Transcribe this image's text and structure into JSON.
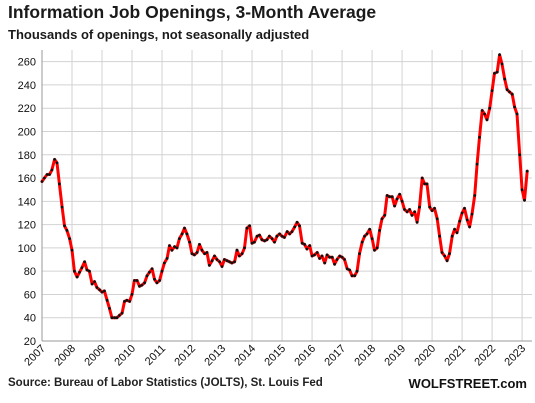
{
  "chart_data": {
    "type": "line",
    "title": "Information Job Openings, 3-Month Average",
    "subtitle": "Thousands of openings, not seasonally adjusted",
    "source": "Source: Bureau of Labor Statistics (JOLTS), St. Louis Fed",
    "brand": "WOLFSTREET.com",
    "ylim": [
      20,
      270
    ],
    "yticks": [
      20,
      40,
      60,
      80,
      100,
      120,
      140,
      160,
      180,
      200,
      220,
      240,
      260
    ],
    "xlim": [
      2007.0,
      2023.33
    ],
    "xticks": [
      "2007",
      "2008",
      "2009",
      "2010",
      "2011",
      "2012",
      "2013",
      "2014",
      "2015",
      "2016",
      "2017",
      "2018",
      "2019",
      "2020",
      "2021",
      "2022",
      "2023"
    ],
    "grid": true,
    "line_color": "#ff0000",
    "marker_color": "#111111",
    "series": [
      {
        "x": [
          2007.0,
          2007.08,
          2007.17,
          2007.25,
          2007.33,
          2007.42,
          2007.5,
          2007.58,
          2007.67,
          2007.75,
          2007.83,
          2007.92,
          2008.0,
          2008.08,
          2008.17,
          2008.25,
          2008.33,
          2008.42,
          2008.5,
          2008.58,
          2008.67,
          2008.75,
          2008.83,
          2008.92,
          2009.0,
          2009.08,
          2009.17,
          2009.25,
          2009.33,
          2009.42,
          2009.5,
          2009.58,
          2009.67,
          2009.75,
          2009.83,
          2009.92,
          2010.0,
          2010.08,
          2010.17,
          2010.25,
          2010.33,
          2010.42,
          2010.5,
          2010.58,
          2010.67,
          2010.75,
          2010.83,
          2010.92,
          2011.0,
          2011.08,
          2011.17,
          2011.25,
          2011.33,
          2011.42,
          2011.5,
          2011.58,
          2011.67,
          2011.75,
          2011.83,
          2011.92,
          2012.0,
          2012.08,
          2012.17,
          2012.25,
          2012.33,
          2012.42,
          2012.5,
          2012.58,
          2012.67,
          2012.75,
          2012.83,
          2012.92,
          2013.0,
          2013.08,
          2013.17,
          2013.25,
          2013.33,
          2013.42,
          2013.5,
          2013.58,
          2013.67,
          2013.75,
          2013.83,
          2013.92,
          2014.0,
          2014.08,
          2014.17,
          2014.25,
          2014.33,
          2014.42,
          2014.5,
          2014.58,
          2014.67,
          2014.75,
          2014.83,
          2014.92,
          2015.0,
          2015.08,
          2015.17,
          2015.25,
          2015.33,
          2015.42,
          2015.5,
          2015.58,
          2015.67,
          2015.75,
          2015.83,
          2015.92,
          2016.0,
          2016.08,
          2016.17,
          2016.25,
          2016.33,
          2016.42,
          2016.5,
          2016.58,
          2016.67,
          2016.75,
          2016.83,
          2016.92,
          2017.0,
          2017.08,
          2017.17,
          2017.25,
          2017.33,
          2017.42,
          2017.5,
          2017.58,
          2017.67,
          2017.75,
          2017.83,
          2017.92,
          2018.0,
          2018.08,
          2018.17,
          2018.25,
          2018.33,
          2018.42,
          2018.5,
          2018.58,
          2018.67,
          2018.75,
          2018.83,
          2018.92,
          2019.0,
          2019.08,
          2019.17,
          2019.25,
          2019.33,
          2019.42,
          2019.5,
          2019.58,
          2019.67,
          2019.75,
          2019.83,
          2019.92,
          2020.0,
          2020.08,
          2020.17,
          2020.25,
          2020.33,
          2020.42,
          2020.5,
          2020.58,
          2020.67,
          2020.75,
          2020.83,
          2020.92,
          2021.0,
          2021.08,
          2021.17,
          2021.25,
          2021.33,
          2021.42,
          2021.5,
          2021.58,
          2021.67,
          2021.75,
          2021.83,
          2021.92,
          2022.0,
          2022.08,
          2022.17,
          2022.25,
          2022.33,
          2022.42,
          2022.5,
          2022.58,
          2022.67,
          2022.75,
          2022.83,
          2022.92,
          2023.0,
          2023.08,
          2023.17
        ],
        "values": [
          157,
          160,
          163,
          163,
          167,
          176,
          173,
          155,
          135,
          119,
          115,
          108,
          98,
          80,
          75,
          79,
          83,
          88,
          81,
          80,
          69,
          71,
          66,
          64,
          62,
          63,
          55,
          48,
          40,
          40,
          40,
          42,
          44,
          54,
          55,
          54,
          60,
          72,
          72,
          67,
          68,
          70,
          76,
          79,
          82,
          73,
          70,
          72,
          80,
          87,
          91,
          102,
          98,
          101,
          100,
          108,
          112,
          117,
          112,
          105,
          95,
          94,
          96,
          103,
          98,
          95,
          96,
          85,
          89,
          93,
          90,
          88,
          84,
          90,
          89,
          88,
          87,
          88,
          98,
          93,
          95,
          100,
          117,
          119,
          104,
          105,
          110,
          111,
          107,
          106,
          107,
          110,
          108,
          105,
          110,
          112,
          110,
          109,
          114,
          112,
          114,
          118,
          122,
          119,
          104,
          103,
          99,
          102,
          93,
          94,
          96,
          91,
          93,
          87,
          94,
          92,
          92,
          86,
          90,
          93,
          92,
          90,
          82,
          81,
          76,
          76,
          80,
          95,
          105,
          110,
          112,
          116,
          108,
          98,
          100,
          115,
          125,
          128,
          145,
          144,
          144,
          136,
          142,
          146,
          140,
          133,
          131,
          133,
          128,
          131,
          122,
          135,
          160,
          155,
          155,
          135,
          132,
          134,
          125,
          110,
          96,
          93,
          89,
          95,
          110,
          116,
          113,
          123,
          130,
          134,
          124,
          118,
          129,
          145,
          172,
          195,
          218,
          215,
          210,
          220,
          235,
          250,
          251,
          266,
          258,
          245,
          236,
          234,
          232,
          221,
          215,
          180,
          150,
          141,
          166
        ]
      }
    ]
  }
}
